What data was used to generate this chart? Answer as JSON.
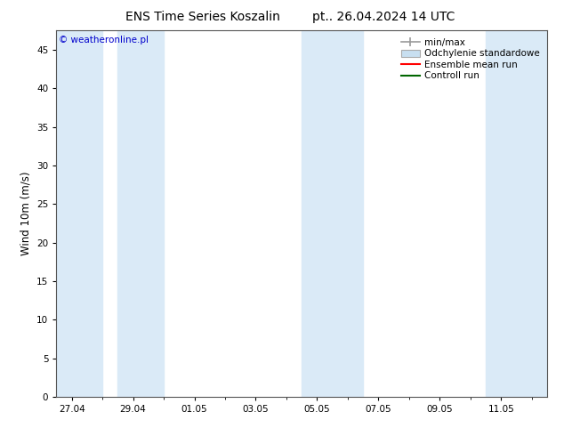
{
  "title": "ENS Time Series Koszalin",
  "title_right": "pt.. 26.04.2024 14 UTC",
  "ylabel": "Wind 10m (m/s)",
  "watermark": "© weatheronline.pl",
  "watermark_color": "#0000cc",
  "ylim": [
    0,
    47.5
  ],
  "yticks": [
    0,
    5,
    10,
    15,
    20,
    25,
    30,
    35,
    40,
    45
  ],
  "background_color": "#ffffff",
  "plot_bg_color": "#ffffff",
  "band_color": "#daeaf7",
  "title_fontsize": 10,
  "tick_fontsize": 7.5,
  "ylabel_fontsize": 8.5,
  "legend_fontsize": 7.5,
  "x_tick_labels": [
    "27.04",
    "29.04",
    "01.05",
    "03.05",
    "05.05",
    "07.05",
    "09.05",
    "11.05"
  ],
  "x_tick_positions": [
    0,
    2,
    4,
    6,
    8,
    10,
    12,
    14
  ],
  "band_positions": [
    [
      -0.5,
      1.0
    ],
    [
      1.5,
      3.0
    ],
    [
      7.5,
      9.5
    ],
    [
      13.5,
      15.5
    ]
  ],
  "xlim": [
    -0.5,
    15.5
  ],
  "legend_items": [
    {
      "label": "min/max",
      "color": "#999999",
      "type": "errorbar"
    },
    {
      "label": "Odchylenie standardowe",
      "color": "#c8dff0",
      "type": "fill"
    },
    {
      "label": "Ensemble mean run",
      "color": "#ff0000",
      "type": "line"
    },
    {
      "label": "Controll run",
      "color": "#006600",
      "type": "line"
    }
  ]
}
